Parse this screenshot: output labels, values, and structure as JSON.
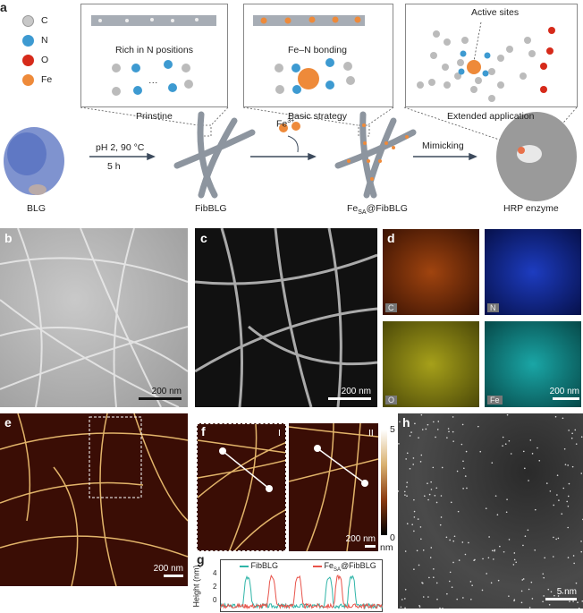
{
  "panels": {
    "a": "a",
    "b": "b",
    "c": "c",
    "d": "d",
    "e": "e",
    "f": "f",
    "g": "g",
    "h": "h"
  },
  "legend": [
    {
      "label": "C",
      "color": "#c8c8c8"
    },
    {
      "label": "N",
      "color": "#3d9ad1"
    },
    {
      "label": "O",
      "color": "#d62a1a"
    },
    {
      "label": "Fe",
      "color": "#ee8a3a"
    }
  ],
  "insets": {
    "pristine_caption": "Rich in N positions",
    "pristine_title": "Prinstine",
    "basic_caption": "Fe–N bonding",
    "basic_title": "Basic strategy",
    "extended_caption": "Active sites",
    "extended_title": "Extended application",
    "ellipsis": "···"
  },
  "scheme": {
    "blg": "BLG",
    "cond1": "pH 2, 90 °C",
    "cond2": "5 h",
    "fibblg": "FibBLG",
    "fe_ion": "Fe",
    "fe_charge": "3+",
    "fesa_pre": "Fe",
    "fesa_sub": "SA",
    "fesa_post": "@FibBLG",
    "mimicking": "Mimicking",
    "hrp": "HRP enzyme"
  },
  "scales": {
    "b": "200 nm",
    "c": "200 nm",
    "d": "200 nm",
    "e": "200 nm",
    "f": "200 nm",
    "h": "5 nm"
  },
  "d_tiles": [
    "C",
    "N",
    "O",
    "Fe"
  ],
  "f": {
    "left_tag": "I",
    "right_tag": "II",
    "cbar_max": "5",
    "cbar_min": "0",
    "cbar_unit": "nm"
  },
  "colors": {
    "fibblg": "#2fb5a8",
    "fesa": "#e8534a",
    "C_map": "#c0581e",
    "N_map": "#2a46c8",
    "O_map": "#b5b01c",
    "Fe_map": "#1fb0b0"
  },
  "chart_data": {
    "type": "line",
    "ylabel": "Height (nm)",
    "yticks": [
      "4",
      "2",
      "0"
    ],
    "ylim": [
      -1,
      5
    ],
    "xlim": [
      0,
      100
    ],
    "series": [
      {
        "name": "FibBLG",
        "color": "#2fb5a8",
        "peaks_x": [
          17,
          67,
          81
        ],
        "peak_height": 3.3
      },
      {
        "name": "Fe@FibBLG",
        "color": "#e8534a",
        "peaks_x": [
          32,
          48,
          73
        ],
        "peak_height": 3.3
      }
    ],
    "legend": {
      "s1": "FibBLG",
      "s2_pre": "Fe",
      "s2_sub": "SA",
      "s2_post": "@FibBLG"
    }
  }
}
